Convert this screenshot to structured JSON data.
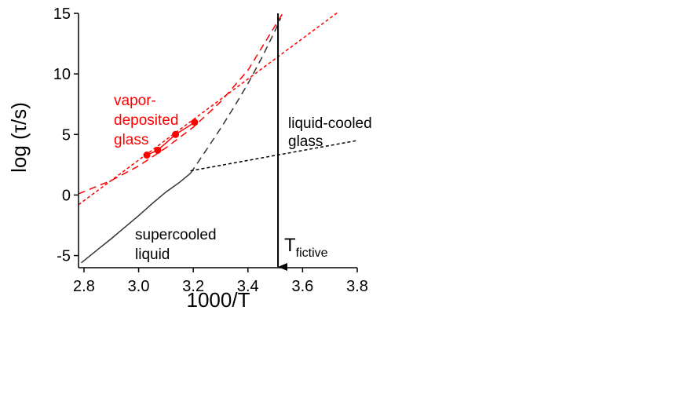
{
  "chart_data": {
    "type": "line",
    "xlabel": "1000/T",
    "ylabel": "log (τ/s)",
    "xlim": [
      2.78,
      3.8
    ],
    "ylim": [
      -6.0,
      15.0
    ],
    "xticks": [
      2.8,
      3.0,
      3.2,
      3.4,
      3.6,
      3.8
    ],
    "yticks": [
      -5,
      0,
      5,
      10,
      15
    ],
    "xtick_labels": [
      "2.8",
      "3.0",
      "3.2",
      "3.4",
      "3.6",
      "3.8"
    ],
    "ytick_labels": [
      "-5",
      "0",
      "5",
      "10",
      "15"
    ],
    "grid": false,
    "colors": {
      "vapor": "#ff0000",
      "liquid": "#000000",
      "dark_dashed": "#333333"
    },
    "series": [
      {
        "style": "solid",
        "color": "#333333",
        "x": [
          2.79,
          2.85,
          2.9,
          2.95,
          3.0,
          3.05,
          3.1,
          3.15,
          3.19
        ],
        "y": [
          -5.6,
          -4.5,
          -3.6,
          -2.65,
          -1.7,
          -0.7,
          0.25,
          1.05,
          1.8
        ]
      },
      {
        "style": "long-dash",
        "color": "#333333",
        "x": [
          3.19,
          3.25,
          3.3,
          3.35,
          3.4,
          3.45,
          3.5,
          3.52
        ],
        "y": [
          1.8,
          3.8,
          5.5,
          7.3,
          9.2,
          11.3,
          13.6,
          14.6
        ]
      },
      {
        "style": "short-dash",
        "color": "#000000",
        "x": [
          3.19,
          3.8
        ],
        "y": [
          2.0,
          4.5
        ]
      },
      {
        "style": "markers-line",
        "color": "#ff0000",
        "x": [
          3.03,
          3.07,
          3.135,
          3.205
        ],
        "y": [
          3.3,
          3.7,
          5.0,
          6.0
        ]
      },
      {
        "style": "long-dash",
        "color": "#ff0000",
        "x": [
          2.78,
          2.9,
          3.0,
          3.1,
          3.2,
          3.3,
          3.4,
          3.53
        ],
        "y": [
          0.1,
          1.2,
          2.4,
          3.9,
          5.6,
          7.7,
          10.3,
          15.1
        ]
      },
      {
        "style": "short-dash",
        "color": "#ff0000",
        "x": [
          2.78,
          3.73
        ],
        "y": [
          -0.8,
          15.1
        ]
      }
    ],
    "arrow": {
      "x": 3.51,
      "y_from": 15.0,
      "y_to": -6.0
    },
    "annotations": [
      {
        "lines": [
          "vapor-",
          "deposited",
          "glass"
        ],
        "color": "#ff0000"
      },
      {
        "lines": [
          "liquid-cooled",
          "glass"
        ],
        "color": "#000000"
      },
      {
        "lines": [
          "supercooled",
          "liquid"
        ],
        "color": "#000000"
      }
    ],
    "arrow_label": {
      "main": "T",
      "sub": "fictive"
    }
  }
}
